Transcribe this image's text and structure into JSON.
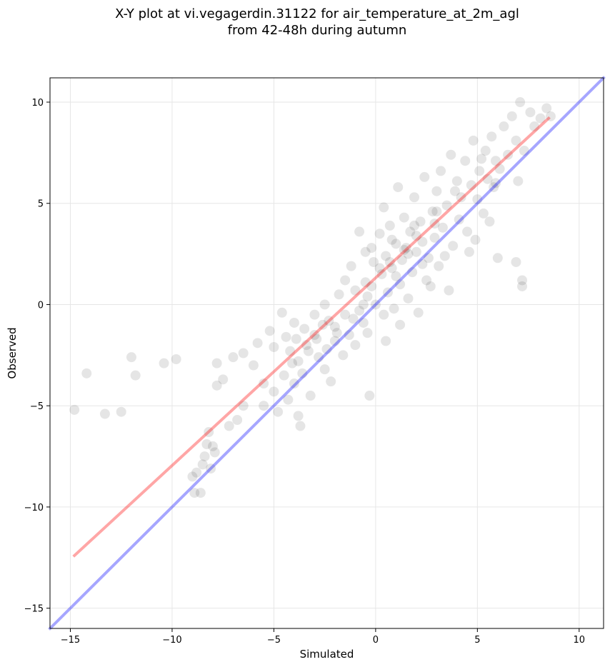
{
  "title_line1": "X-Y plot at vi.vegagerdin.31122 for air_temperature_at_2m_agl",
  "title_line2": "from 42-48h during autumn",
  "chart_data": {
    "type": "scatter",
    "title": "X-Y plot at vi.vegagerdin.31122 for air_temperature_at_2m_agl from 42-48h during autumn",
    "xlabel": "Simulated",
    "ylabel": "Observed",
    "xlim": [
      -16,
      11.2
    ],
    "ylim": [
      -16,
      11.2
    ],
    "xticks": [
      -15,
      -10,
      -5,
      0,
      5,
      10
    ],
    "yticks": [
      -15,
      -10,
      -5,
      0,
      5,
      10
    ],
    "xtick_labels": [
      "−15",
      "−10",
      "−5",
      "0",
      "5",
      "10"
    ],
    "ytick_labels": [
      "−15",
      "−10",
      "−5",
      "0",
      "5",
      "10"
    ],
    "grid": true,
    "point_color": "#000000",
    "point_alpha": 0.1,
    "points": [
      [
        -14.8,
        -5.2
      ],
      [
        -14.2,
        -3.4
      ],
      [
        -13.3,
        -5.4
      ],
      [
        -12.5,
        -5.3
      ],
      [
        -12.0,
        -2.6
      ],
      [
        -11.8,
        -3.5
      ],
      [
        -10.4,
        -2.9
      ],
      [
        -9.8,
        -2.7
      ],
      [
        -9.0,
        -8.5
      ],
      [
        -8.9,
        -9.3
      ],
      [
        -8.8,
        -8.3
      ],
      [
        -8.6,
        -9.3
      ],
      [
        -8.5,
        -7.9
      ],
      [
        -8.4,
        -7.5
      ],
      [
        -8.3,
        -6.9
      ],
      [
        -8.2,
        -6.3
      ],
      [
        -8.0,
        -7.0
      ],
      [
        -7.9,
        -7.3
      ],
      [
        -8.1,
        -8.1
      ],
      [
        -7.8,
        -4.0
      ],
      [
        -7.8,
        -2.9
      ],
      [
        -7.5,
        -3.7
      ],
      [
        -7.2,
        -6.0
      ],
      [
        -7.0,
        -2.6
      ],
      [
        -6.8,
        -5.7
      ],
      [
        -6.5,
        -5.0
      ],
      [
        -6.5,
        -2.4
      ],
      [
        -6.0,
        -3.0
      ],
      [
        -5.8,
        -1.9
      ],
      [
        -5.5,
        -5.0
      ],
      [
        -5.2,
        -1.3
      ],
      [
        -5.0,
        -2.1
      ],
      [
        -5.0,
        -4.3
      ],
      [
        -4.8,
        -5.3
      ],
      [
        -4.6,
        -0.4
      ],
      [
        -4.5,
        -3.5
      ],
      [
        -4.4,
        -1.6
      ],
      [
        -4.2,
        -2.3
      ],
      [
        -4.0,
        -3.9
      ],
      [
        -4.0,
        -0.9
      ],
      [
        -3.8,
        -5.5
      ],
      [
        -3.7,
        -6.0
      ],
      [
        -3.8,
        -2.8
      ],
      [
        -3.5,
        -1.2
      ],
      [
        -3.4,
        -2.0
      ],
      [
        -3.2,
        -4.5
      ],
      [
        -3.0,
        -1.5
      ],
      [
        -3.0,
        -0.5
      ],
      [
        -2.8,
        -2.6
      ],
      [
        -2.5,
        -3.2
      ],
      [
        -2.5,
        0.0
      ],
      [
        -2.3,
        -0.8
      ],
      [
        -2.2,
        -3.8
      ],
      [
        -2.0,
        -1.8
      ],
      [
        -2.0,
        -1.1
      ],
      [
        -1.8,
        0.5
      ],
      [
        -1.6,
        -2.5
      ],
      [
        -1.5,
        -0.5
      ],
      [
        -1.3,
        -1.5
      ],
      [
        -1.2,
        1.9
      ],
      [
        -1.0,
        0.7
      ],
      [
        -1.0,
        -2.0
      ],
      [
        -0.8,
        -0.3
      ],
      [
        -0.8,
        3.6
      ],
      [
        -0.6,
        -0.9
      ],
      [
        -0.5,
        2.6
      ],
      [
        -0.5,
        1.1
      ],
      [
        -0.4,
        -1.4
      ],
      [
        -0.3,
        -4.5
      ],
      [
        -0.2,
        0.9
      ],
      [
        -0.1,
        2.1
      ],
      [
        0.0,
        0.0
      ],
      [
        0.2,
        3.5
      ],
      [
        0.3,
        1.5
      ],
      [
        0.4,
        -0.5
      ],
      [
        0.4,
        4.8
      ],
      [
        0.5,
        2.4
      ],
      [
        0.6,
        0.6
      ],
      [
        0.7,
        3.9
      ],
      [
        0.8,
        1.8
      ],
      [
        0.9,
        -0.2
      ],
      [
        1.0,
        3.0
      ],
      [
        1.1,
        5.8
      ],
      [
        1.2,
        1.0
      ],
      [
        1.3,
        2.2
      ],
      [
        1.4,
        4.3
      ],
      [
        1.5,
        2.8
      ],
      [
        1.6,
        0.3
      ],
      [
        1.7,
        3.6
      ],
      [
        1.8,
        1.6
      ],
      [
        1.9,
        5.3
      ],
      [
        2.0,
        2.6
      ],
      [
        2.1,
        -0.4
      ],
      [
        2.2,
        4.1
      ],
      [
        2.3,
        3.1
      ],
      [
        2.4,
        6.3
      ],
      [
        2.5,
        1.2
      ],
      [
        2.6,
        2.3
      ],
      [
        2.8,
        4.6
      ],
      [
        2.9,
        3.3
      ],
      [
        3.0,
        5.6
      ],
      [
        3.1,
        1.9
      ],
      [
        3.2,
        6.6
      ],
      [
        3.3,
        3.8
      ],
      [
        3.5,
        4.9
      ],
      [
        3.6,
        0.7
      ],
      [
        3.7,
        7.4
      ],
      [
        3.8,
        2.9
      ],
      [
        4.0,
        6.1
      ],
      [
        4.1,
        4.2
      ],
      [
        4.2,
        5.3
      ],
      [
        4.4,
        7.1
      ],
      [
        4.5,
        3.6
      ],
      [
        4.6,
        2.6
      ],
      [
        4.8,
        8.1
      ],
      [
        5.0,
        5.2
      ],
      [
        5.1,
        6.6
      ],
      [
        5.3,
        4.5
      ],
      [
        5.4,
        7.6
      ],
      [
        5.5,
        6.2
      ],
      [
        5.7,
        8.3
      ],
      [
        5.8,
        5.8
      ],
      [
        5.9,
        7.1
      ],
      [
        6.1,
        6.7
      ],
      [
        6.3,
        8.8
      ],
      [
        6.5,
        7.4
      ],
      [
        6.7,
        9.3
      ],
      [
        6.9,
        8.1
      ],
      [
        7.0,
        6.1
      ],
      [
        7.1,
        10.0
      ],
      [
        7.3,
        7.6
      ],
      [
        7.6,
        9.5
      ],
      [
        7.8,
        8.8
      ],
      [
        8.1,
        9.2
      ],
      [
        8.4,
        9.7
      ],
      [
        8.6,
        9.3
      ],
      [
        6.0,
        2.3
      ],
      [
        6.9,
        2.1
      ],
      [
        7.2,
        1.2
      ],
      [
        7.2,
        0.9
      ],
      [
        5.6,
        4.1
      ],
      [
        4.9,
        3.2
      ],
      [
        3.4,
        2.4
      ],
      [
        2.7,
        0.9
      ],
      [
        1.2,
        -1.0
      ],
      [
        0.5,
        -1.8
      ],
      [
        -0.4,
        0.4
      ],
      [
        -1.5,
        1.2
      ],
      [
        -2.6,
        -1.0
      ],
      [
        -3.6,
        -3.4
      ],
      [
        -4.3,
        -4.7
      ],
      [
        -5.5,
        -3.9
      ],
      [
        0.8,
        3.2
      ],
      [
        1.6,
        2.5
      ],
      [
        2.3,
        2.0
      ],
      [
        1.0,
        1.4
      ],
      [
        0.2,
        1.8
      ],
      [
        -0.2,
        2.8
      ],
      [
        1.9,
        3.9
      ],
      [
        2.9,
        4.0
      ],
      [
        3.9,
        5.6
      ],
      [
        4.7,
        5.9
      ],
      [
        5.2,
        7.2
      ],
      [
        5.9,
        6.0
      ],
      [
        3.0,
        4.6
      ],
      [
        2.0,
        3.4
      ],
      [
        1.4,
        2.7
      ],
      [
        0.7,
        2.1
      ],
      [
        -0.6,
        0.0
      ],
      [
        -1.1,
        -0.7
      ],
      [
        -1.9,
        -1.4
      ],
      [
        -2.9,
        -1.7
      ],
      [
        -3.3,
        -2.3
      ],
      [
        -4.1,
        -2.9
      ],
      [
        -3.9,
        -1.7
      ],
      [
        -2.4,
        -2.2
      ]
    ],
    "series": [
      {
        "type": "line",
        "color": "#ff0000",
        "alpha": 0.35,
        "x": [
          -14.8,
          8.5
        ],
        "y": [
          -12.4,
          9.2
        ]
      },
      {
        "type": "line",
        "color": "#0000ff",
        "alpha": 0.35,
        "x": [
          -16,
          11.2
        ],
        "y": [
          -16,
          11.2
        ]
      }
    ]
  }
}
